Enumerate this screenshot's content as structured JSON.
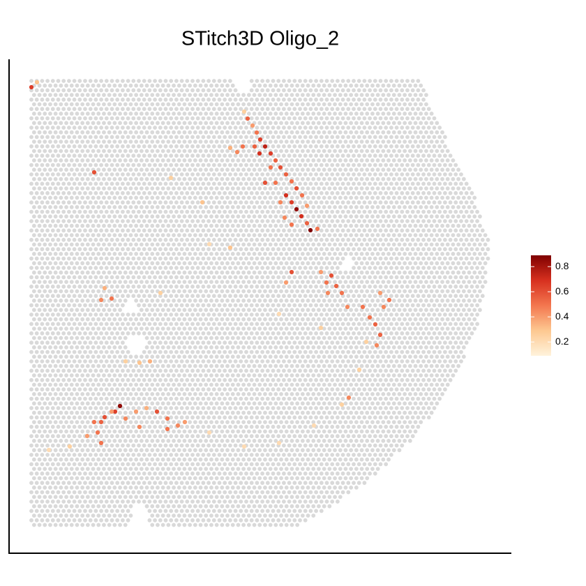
{
  "chart_data": {
    "type": "scatter",
    "title": "STitch3D Oligo_2",
    "xlim": [
      13,
      733
    ],
    "ylim": [
      793,
      85
    ],
    "clim": [
      0.09,
      0.89
    ],
    "colorbar_ticks": [
      0.2,
      0.4,
      0.6,
      0.8
    ],
    "colormap": [
      "#fff3dc",
      "#fdc891",
      "#f3774f",
      "#d7301f",
      "#7f0000"
    ],
    "background_color": "#d9d9d9",
    "series": [
      {
        "name": "Oligo_2",
        "x": [
          45,
          53,
          135,
          350,
          355,
          362,
          368,
          373,
          380,
          388,
          395,
          402,
          410,
          418,
          425,
          410,
          418,
          425,
          432,
          440,
          445,
          455,
          372,
          365,
          348,
          340,
          330,
          388,
          380,
          402,
          395,
          433,
          440,
          418,
          408,
          460,
          468,
          475,
          482,
          490,
          470,
          498,
          520,
          530,
          538,
          545,
          550,
          558,
          545,
          540,
          500,
          418,
          410,
          150,
          145,
          160,
          215,
          172,
          165,
          150,
          145,
          135,
          140,
          125,
          145,
          180,
          195,
          210,
          225,
          240,
          255,
          265,
          240,
          200,
          160,
          300,
          350,
          400,
          450,
          490,
          515,
          525,
          100,
          70,
          290,
          245,
          230,
          180,
          200,
          330,
          300,
          460,
          400
        ],
        "y": [
          125,
          118,
          247,
          160,
          170,
          180,
          190,
          200,
          210,
          220,
          230,
          240,
          250,
          260,
          270,
          280,
          290,
          300,
          310,
          320,
          330,
          328,
          220,
          210,
          210,
          218,
          212,
          240,
          262,
          290,
          262,
          280,
          295,
          322,
          312,
          390,
          405,
          395,
          410,
          420,
          420,
          440,
          440,
          455,
          465,
          480,
          440,
          430,
          420,
          495,
          570,
          390,
          405,
          413,
          430,
          428,
          518,
          582,
          590,
          598,
          605,
          605,
          620,
          625,
          635,
          600,
          590,
          585,
          590,
          600,
          610,
          605,
          615,
          612,
          590,
          620,
          640,
          635,
          610,
          580,
          530,
          490,
          640,
          645,
          290,
          255,
          420,
          518,
          520,
          355,
          350,
          470,
          450
        ],
        "values": [
          0.65,
          0.3,
          0.6,
          0.25,
          0.55,
          0.4,
          0.5,
          0.65,
          0.75,
          0.65,
          0.55,
          0.6,
          0.55,
          0.5,
          0.6,
          0.7,
          0.65,
          0.85,
          0.7,
          0.55,
          0.9,
          0.5,
          0.7,
          0.55,
          0.5,
          0.45,
          0.35,
          0.5,
          0.6,
          0.45,
          0.5,
          0.5,
          0.4,
          0.5,
          0.45,
          0.4,
          0.5,
          0.6,
          0.55,
          0.5,
          0.45,
          0.45,
          0.5,
          0.5,
          0.55,
          0.55,
          0.45,
          0.5,
          0.4,
          0.45,
          0.45,
          0.6,
          0.4,
          0.35,
          0.45,
          0.5,
          0.35,
          0.85,
          0.65,
          0.6,
          0.55,
          0.5,
          0.5,
          0.4,
          0.5,
          0.45,
          0.4,
          0.35,
          0.6,
          0.5,
          0.45,
          0.4,
          0.5,
          0.45,
          0.4,
          0.2,
          0.2,
          0.2,
          0.2,
          0.25,
          0.25,
          0.25,
          0.25,
          0.2,
          0.3,
          0.25,
          0.25,
          0.25,
          0.3,
          0.3,
          0.2,
          0.25,
          0.2
        ]
      }
    ]
  }
}
